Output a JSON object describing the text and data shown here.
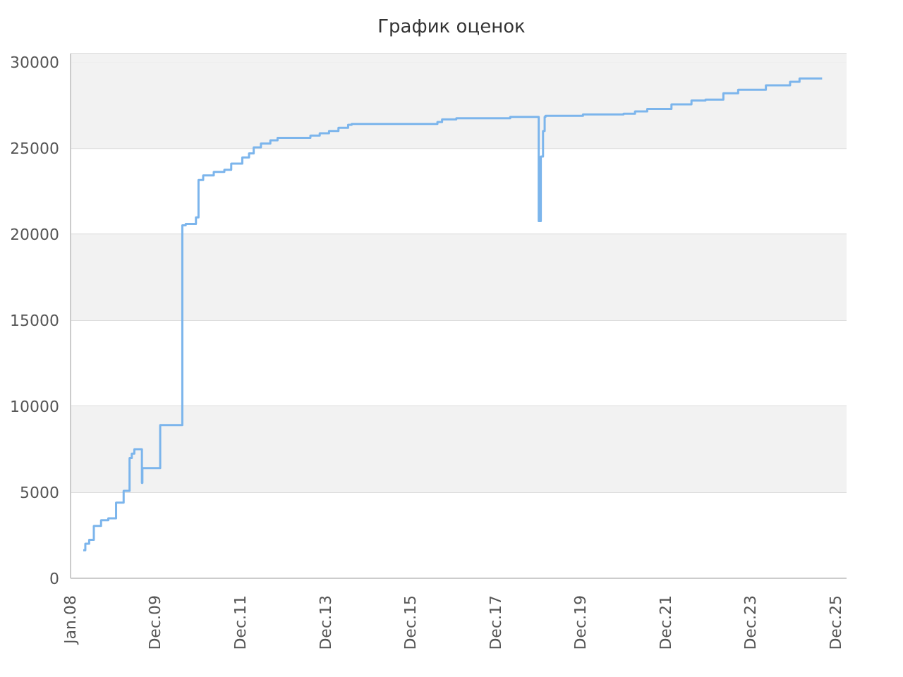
{
  "chart_data": {
    "type": "step",
    "title": "График оценок",
    "x": [
      "2008-04-19",
      "2008-05-07",
      "2008-06-09",
      "2008-07-19",
      "2008-09-19",
      "2008-11-20",
      "2009-01-26",
      "2009-04-01",
      "2009-05-22",
      "2009-06-10",
      "2009-07-02",
      "2009-09-05",
      "2009-09-09",
      "2010-02-09",
      "2010-08-18",
      "2010-09-16",
      "2010-12-13",
      "2011-01-04",
      "2011-02-13",
      "2011-05-15",
      "2011-08-14",
      "2011-10-12",
      "2012-01-15",
      "2012-03-13",
      "2012-04-22",
      "2012-06-23",
      "2012-09-12",
      "2012-11-13",
      "2013-08-22",
      "2013-11-10",
      "2014-01-29",
      "2014-04-20",
      "2014-07-12",
      "2014-08-11",
      "2016-08-17",
      "2016-09-26",
      "2017-01-26",
      "2018-05-04",
      "2019-01-04",
      "2019-01-22",
      "2019-02-10",
      "2019-02-24",
      "2019-03-03",
      "2020-01-19",
      "2021-01-01",
      "2021-04-10",
      "2021-07-24",
      "2022-02-17",
      "2022-08-08",
      "2022-12-06",
      "2023-05-09",
      "2023-09-13",
      "2024-05-08",
      "2024-12-02",
      "2025-02-21",
      "2025-09-03"
    ],
    "series": [
      {
        "color": "#7cb5ec",
        "values": [
          1630,
          2010,
          2230,
          3040,
          3370,
          3480,
          4400,
          5080,
          6990,
          7250,
          7500,
          5540,
          6410,
          8910,
          20520,
          20600,
          20980,
          23150,
          23420,
          23620,
          23750,
          24100,
          24460,
          24700,
          25050,
          25270,
          25460,
          25600,
          25730,
          25870,
          26000,
          26190,
          26360,
          26410,
          26520,
          26680,
          26740,
          26820,
          20760,
          24510,
          26000,
          26820,
          26880,
          26960,
          27010,
          27140,
          27280,
          27550,
          27770,
          27830,
          28190,
          28400,
          28660,
          28860,
          29050,
          29050
        ]
      }
    ],
    "xlim": [
      "2008-01-01",
      "2026-04-01"
    ],
    "xticks": [
      {
        "value": "2008-01-01",
        "label": "Jan.08"
      },
      {
        "value": "2009-12-31",
        "label": "Dec.09"
      },
      {
        "value": "2011-12-31",
        "label": "Dec.11"
      },
      {
        "value": "2013-12-31",
        "label": "Dec.13"
      },
      {
        "value": "2015-12-31",
        "label": "Dec.15"
      },
      {
        "value": "2017-12-31",
        "label": "Dec.17"
      },
      {
        "value": "2019-12-31",
        "label": "Dec.19"
      },
      {
        "value": "2021-12-31",
        "label": "Dec.21"
      },
      {
        "value": "2023-12-31",
        "label": "Dec.23"
      },
      {
        "value": "2025-12-31",
        "label": "Dec.25"
      }
    ],
    "ylim": [
      0,
      30500
    ],
    "yticks": [
      0,
      5000,
      10000,
      15000,
      20000,
      25000,
      30000
    ],
    "grid": "y",
    "marker": "none"
  }
}
